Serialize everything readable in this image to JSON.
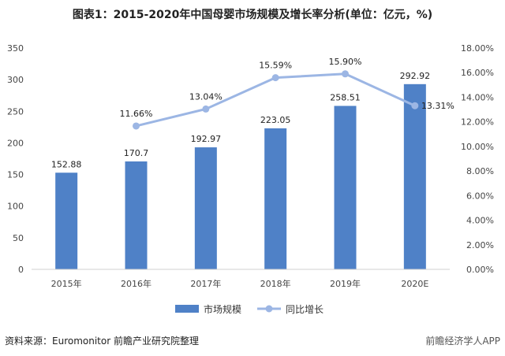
{
  "title": "图表1：2015-2020年中国母婴市场规模及增长率分析(单位：亿元，%)",
  "source": "资料来源：Euromonitor 前瞻产业研究院整理",
  "brand": "前瞻经济学人APP",
  "chart_data": {
    "type": "bar",
    "categories": [
      "2015年",
      "2016年",
      "2017年",
      "2018年",
      "2019年",
      "2020E"
    ],
    "series": [
      {
        "name": "市场规模",
        "type": "bar",
        "axis": "left",
        "color": "#4f81c7",
        "values": [
          152.88,
          170.7,
          192.97,
          223.05,
          258.51,
          292.92
        ],
        "labels": [
          "152.88",
          "170.7",
          "192.97",
          "223.05",
          "258.51",
          "292.92"
        ]
      },
      {
        "name": "同比增长",
        "type": "line",
        "axis": "right",
        "color": "#9cb6e4",
        "values": [
          null,
          11.66,
          13.04,
          15.59,
          15.9,
          13.31
        ],
        "labels": [
          "",
          "11.66%",
          "13.04%",
          "15.59%",
          "15.90%",
          "13.31%"
        ]
      }
    ],
    "y_left": {
      "min": 0,
      "max": 350,
      "ticks": [
        "0",
        "50",
        "100",
        "150",
        "200",
        "250",
        "300",
        "350"
      ]
    },
    "y_right": {
      "min": 0,
      "max": 18,
      "ticks": [
        "0.00%",
        "2.00%",
        "4.00%",
        "6.00%",
        "8.00%",
        "10.00%",
        "12.00%",
        "14.00%",
        "16.00%",
        "18.00%"
      ]
    },
    "grid": false,
    "legend": "bottom"
  }
}
